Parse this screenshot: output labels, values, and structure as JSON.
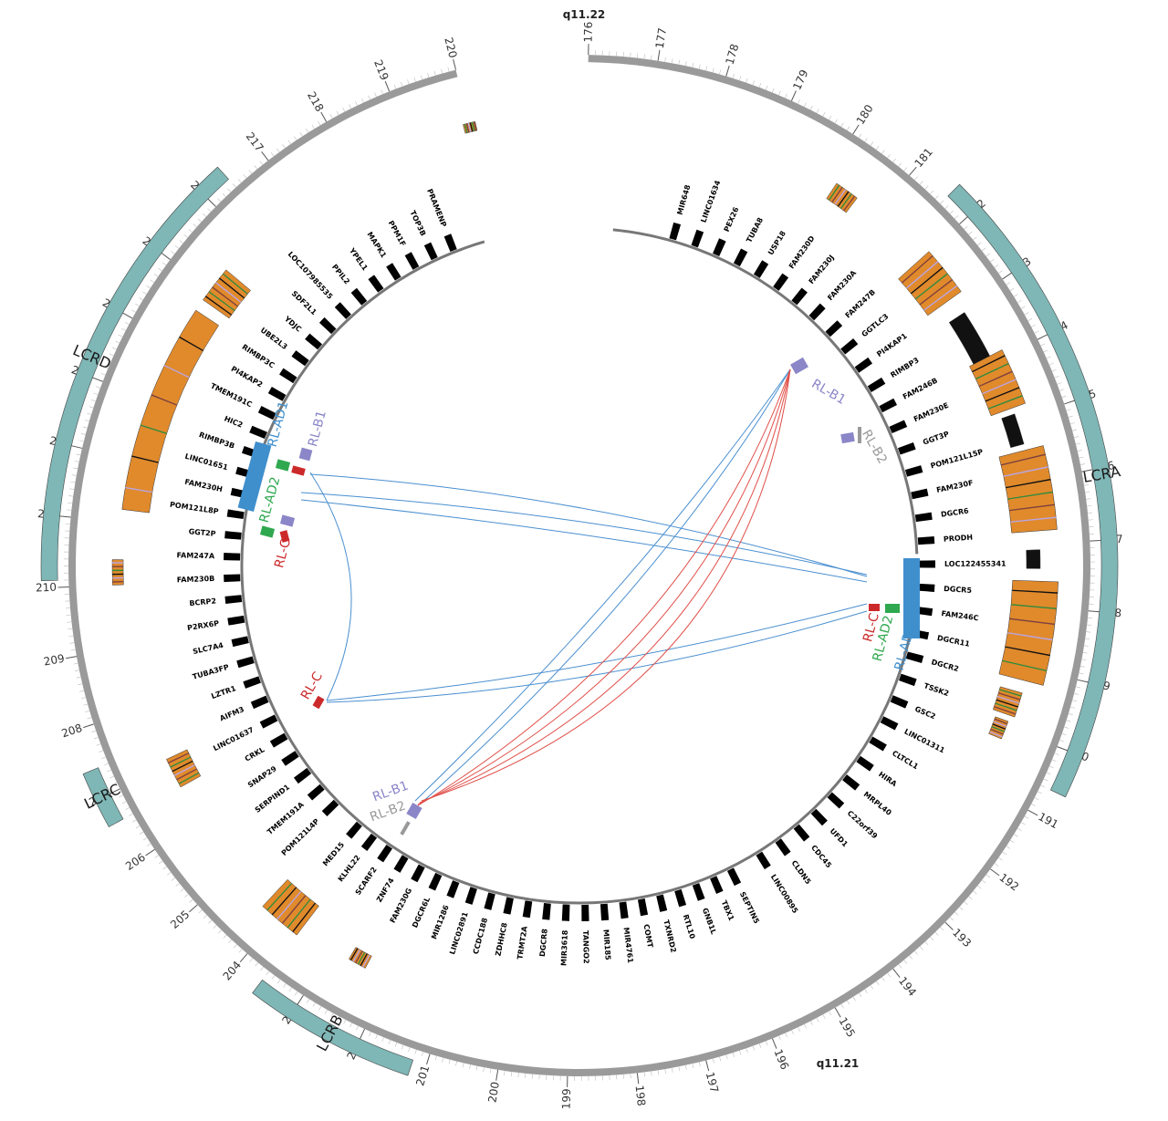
{
  "bands": {
    "top": "q11.22",
    "bottom": "q11.21"
  },
  "ticks": [
    "176",
    "177",
    "178",
    "179",
    "180",
    "181",
    "182",
    "183",
    "184",
    "185",
    "186",
    "187",
    "188",
    "189",
    "190",
    "191",
    "192",
    "193",
    "194",
    "195",
    "196",
    "197",
    "198",
    "199",
    "200",
    "201",
    "202",
    "203",
    "204",
    "205",
    "206",
    "207",
    "208",
    "209",
    "210",
    "211",
    "212",
    "213",
    "214",
    "215",
    "216",
    "217",
    "218",
    "219",
    "220"
  ],
  "lcr_regions": [
    "LCRA",
    "LCRB",
    "LCRC",
    "LCRD"
  ],
  "genes_right": [
    "MIR648",
    "LINC01634",
    "PEX26",
    "TUBA8",
    "USP18",
    "FAM230D",
    "FAM230J",
    "FAM230A",
    "FAM247B",
    "GGTLC3",
    "PI4KAP1",
    "RIMBP3",
    "FAM246B",
    "FAM230E",
    "GGT3P",
    "POM121L15P",
    "FAM230F",
    "DGCR6",
    "PRODH",
    "LOC122455341",
    "DGCR5",
    "FAM246C",
    "DGCR11",
    "DGCR2",
    "TSSK2",
    "GSC2",
    "LINC01311",
    "CLTCL1",
    "HIRA",
    "MRPL40",
    "C22orf39",
    "UFD1",
    "CDC45",
    "CLDN5",
    "LINC00895"
  ],
  "genes_bottom": [
    "SEPTIN5",
    "TBX1",
    "GNB1L",
    "RTL10",
    "TXNRD2",
    "COMT",
    "MIR4761",
    "MIR185",
    "TANGO2",
    "MIR3618",
    "DGCR8",
    "TRMT2A",
    "ZDHHC8",
    "CCDC188",
    "LINC02891",
    "MIR1286",
    "DGCR6L",
    "FAM230G",
    "ZNF74",
    "SCARF2",
    "KLHL22",
    "MED15"
  ],
  "genes_left": [
    "POM121L4P",
    "TMEM191A",
    "SERPIND1",
    "SNAP29",
    "CRKL",
    "LINC01637",
    "AIFM3",
    "LZTR1",
    "TUBA3FP",
    "SLC7A4",
    "P2RX6P",
    "BCRP2",
    "FAM230B",
    "FAM247A",
    "GGT2P",
    "POM121L8P",
    "FAM230H",
    "LINC01651",
    "RIMBP3B",
    "HIC2",
    "TMEM191C",
    "PI4KAP2",
    "RIMBP3C",
    "UBE2L3",
    "YDJC",
    "SDF2L1",
    "LOC107985535",
    "PPIL2",
    "YPEL1",
    "MAPK1",
    "PPM1F",
    "TOP3B",
    "PRAMENP"
  ],
  "repeat_labels": {
    "left": [
      "RL-AD1",
      "RL-AD2",
      "RL-B1",
      "RL-C"
    ],
    "right": [
      "RL-AD1",
      "RL-AD2",
      "RL-C"
    ],
    "top_right": [
      "RL-B1",
      "RL-B2"
    ],
    "bottom_left": [
      "RL-B1",
      "RL-B2"
    ],
    "inner": [
      "RL-C"
    ]
  },
  "colors": {
    "outer_ring": "#9a9a9a",
    "lcr": "#7fb6b6",
    "segdup": "#e08a2c",
    "link_blue": "#4a8fd0",
    "link_red": "#e0504a",
    "rl_ad1": "#3f8fcd",
    "rl_ad2": "#2fa84f",
    "rl_b1": "#8a86c8",
    "rl_b2": "#9a9a9a",
    "rl_c": "#cc2a2a"
  }
}
